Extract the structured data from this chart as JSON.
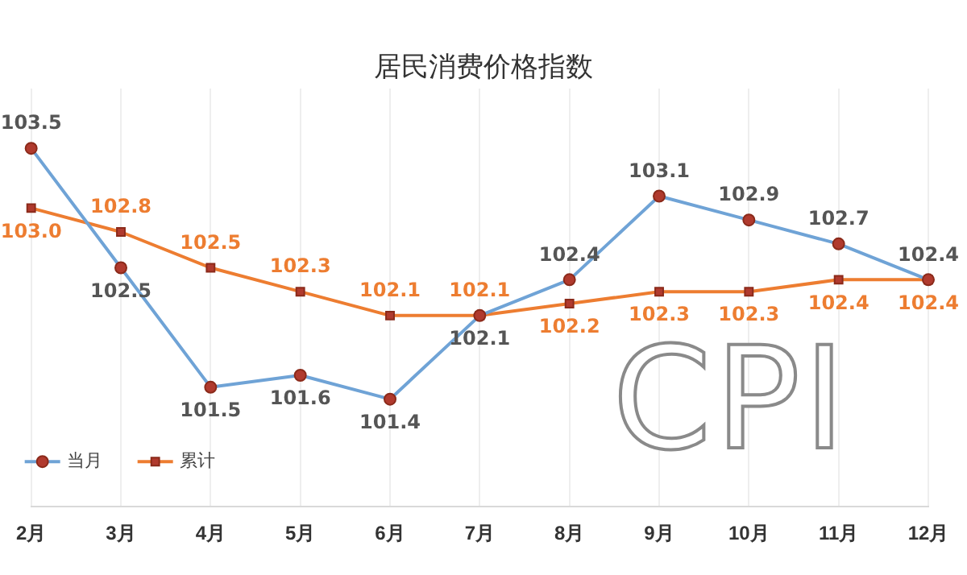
{
  "chart_data": {
    "type": "line",
    "title": "居民消费价格指数",
    "categories": [
      "2月",
      "3月",
      "4月",
      "5月",
      "6月",
      "7月",
      "8月",
      "9月",
      "10月",
      "11月",
      "12月"
    ],
    "series": [
      {
        "name": "当月",
        "color": "#6fa3d6",
        "marker": "circle",
        "values": [
          103.5,
          102.5,
          101.5,
          101.6,
          101.4,
          102.1,
          102.4,
          103.1,
          102.9,
          102.7,
          102.4
        ],
        "value_labels": [
          "103.5",
          "102.5",
          "101.5",
          "101.6",
          "101.4",
          "102.1",
          "102.4",
          "103.1",
          "102.9",
          "102.7",
          "102.4"
        ]
      },
      {
        "name": "累计",
        "color": "#ed7d31",
        "marker": "square",
        "values": [
          103.0,
          102.8,
          102.5,
          102.3,
          102.1,
          102.1,
          102.2,
          102.3,
          102.3,
          102.4,
          102.4
        ],
        "value_labels": [
          "103.0",
          "102.8",
          "102.5",
          "102.3",
          "102.1",
          "102.1",
          "102.2",
          "102.3",
          "102.3",
          "102.4",
          "102.4"
        ]
      }
    ],
    "grid": "x",
    "legend": "bottom left",
    "annotations": [
      "CPI"
    ]
  }
}
